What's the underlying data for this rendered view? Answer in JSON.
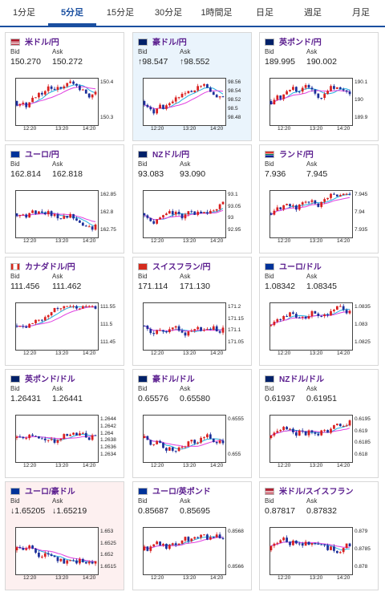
{
  "tabs": [
    "1分足",
    "5分足",
    "15分足",
    "30分足",
    "1時間足",
    "日足",
    "週足",
    "月足"
  ],
  "active_tab": 1,
  "labels": {
    "bid": "Bid",
    "ask": "Ask"
  },
  "cards": [
    {
      "pair": "米ドル/円",
      "flag": "us",
      "bid": "150.270",
      "ask": "150.272",
      "yticks": [
        "150.4",
        "150.3"
      ],
      "xticks": [
        "12:20",
        "13:20",
        "14:20"
      ],
      "bg": "white"
    },
    {
      "pair": "豪ドル/円",
      "flag": "au",
      "bid": "↑98.547",
      "ask": "↑98.552",
      "yticks": [
        "98.56",
        "98.54",
        "98.52",
        "98.5",
        "98.48"
      ],
      "xticks": [
        "12:20",
        "13:20",
        "14:20"
      ],
      "bg": "blue"
    },
    {
      "pair": "英ポンド/円",
      "flag": "gb",
      "bid": "189.995",
      "ask": "190.002",
      "yticks": [
        "190.1",
        "190",
        "189.9"
      ],
      "xticks": [
        "12:20",
        "13:20",
        "14:20"
      ],
      "bg": "white"
    },
    {
      "pair": "ユーロ/円",
      "flag": "eu",
      "bid": "162.814",
      "ask": "162.818",
      "yticks": [
        "162.85",
        "162.8",
        "162.75"
      ],
      "xticks": [
        "12:20",
        "13:20",
        "14:20"
      ],
      "bg": "white"
    },
    {
      "pair": "NZドル/円",
      "flag": "nz",
      "bid": "93.083",
      "ask": "93.090",
      "yticks": [
        "93.1",
        "93.05",
        "93",
        "92.95"
      ],
      "xticks": [
        "12:20",
        "13:20",
        "14:20"
      ],
      "bg": "white"
    },
    {
      "pair": "ランド/円",
      "flag": "za",
      "bid": "7.936",
      "ask": "7.945",
      "yticks": [
        "7.945",
        "7.94",
        "7.935"
      ],
      "xticks": [
        "12:20",
        "13:20",
        "14:20"
      ],
      "bg": "white"
    },
    {
      "pair": "カナダドル/円",
      "flag": "ca",
      "bid": "111.456",
      "ask": "111.462",
      "yticks": [
        "111.55",
        "111.5",
        "111.45"
      ],
      "xticks": [
        "12:20",
        "13:20",
        "14:20"
      ],
      "bg": "white"
    },
    {
      "pair": "スイスフラン/円",
      "flag": "ch",
      "bid": "171.114",
      "ask": "171.130",
      "yticks": [
        "171.2",
        "171.15",
        "171.1",
        "171.05"
      ],
      "xticks": [
        "12:20",
        "13:20",
        "14:20"
      ],
      "bg": "white"
    },
    {
      "pair": "ユーロ/ドル",
      "flag": "eu",
      "bid": "1.08342",
      "ask": "1.08345",
      "yticks": [
        "1.0835",
        "1.083",
        "1.0825"
      ],
      "xticks": [
        "12:20",
        "13:20",
        "14:20"
      ],
      "bg": "white"
    },
    {
      "pair": "英ポンド/ドル",
      "flag": "gb",
      "bid": "1.26431",
      "ask": "1.26441",
      "yticks": [
        "1.2644",
        "1.2642",
        "1.264",
        "1.2638",
        "1.2636",
        "1.2634"
      ],
      "xticks": [
        "12:20",
        "13:20",
        "14:20"
      ],
      "bg": "white"
    },
    {
      "pair": "豪ドル/ドル",
      "flag": "au",
      "bid": "0.65576",
      "ask": "0.65580",
      "yticks": [
        "0.6555",
        "0.655"
      ],
      "xticks": [
        "12:20",
        "13:20",
        "14:20"
      ],
      "bg": "white"
    },
    {
      "pair": "NZドル/ドル",
      "flag": "nz",
      "bid": "0.61937",
      "ask": "0.61951",
      "yticks": [
        "0.6195",
        "0.619",
        "0.6185",
        "0.618"
      ],
      "xticks": [
        "12:20",
        "13:20",
        "14:20"
      ],
      "bg": "white"
    },
    {
      "pair": "ユーロ/豪ドル",
      "flag": "eu",
      "bid": "↓1.65205",
      "ask": "↓1.65219",
      "yticks": [
        "1.653",
        "1.6525",
        "1.652",
        "1.6515"
      ],
      "xticks": [
        "12:20",
        "13:20",
        "14:20"
      ],
      "bg": "pink"
    },
    {
      "pair": "ユーロ/英ポンド",
      "flag": "eu",
      "bid": "0.85687",
      "ask": "0.85695",
      "yticks": [
        "0.8568",
        "0.8566"
      ],
      "xticks": [
        "12:20",
        "13:20",
        "14:20"
      ],
      "bg": "white"
    },
    {
      "pair": "米ドル/スイスフラン",
      "flag": "us",
      "bid": "0.87817",
      "ask": "0.87832",
      "yticks": [
        "0.879",
        "0.8785",
        "0.878"
      ],
      "xticks": [
        "12:20",
        "13:20",
        "14:20"
      ],
      "bg": "white"
    }
  ],
  "colors": {
    "up": "#d92020",
    "down": "#1c2f9a",
    "ma_short": "#e040e0",
    "ma_long": "#23b0e0",
    "accent": "#1a4fa0",
    "pair_text": "#5a1d8e"
  }
}
